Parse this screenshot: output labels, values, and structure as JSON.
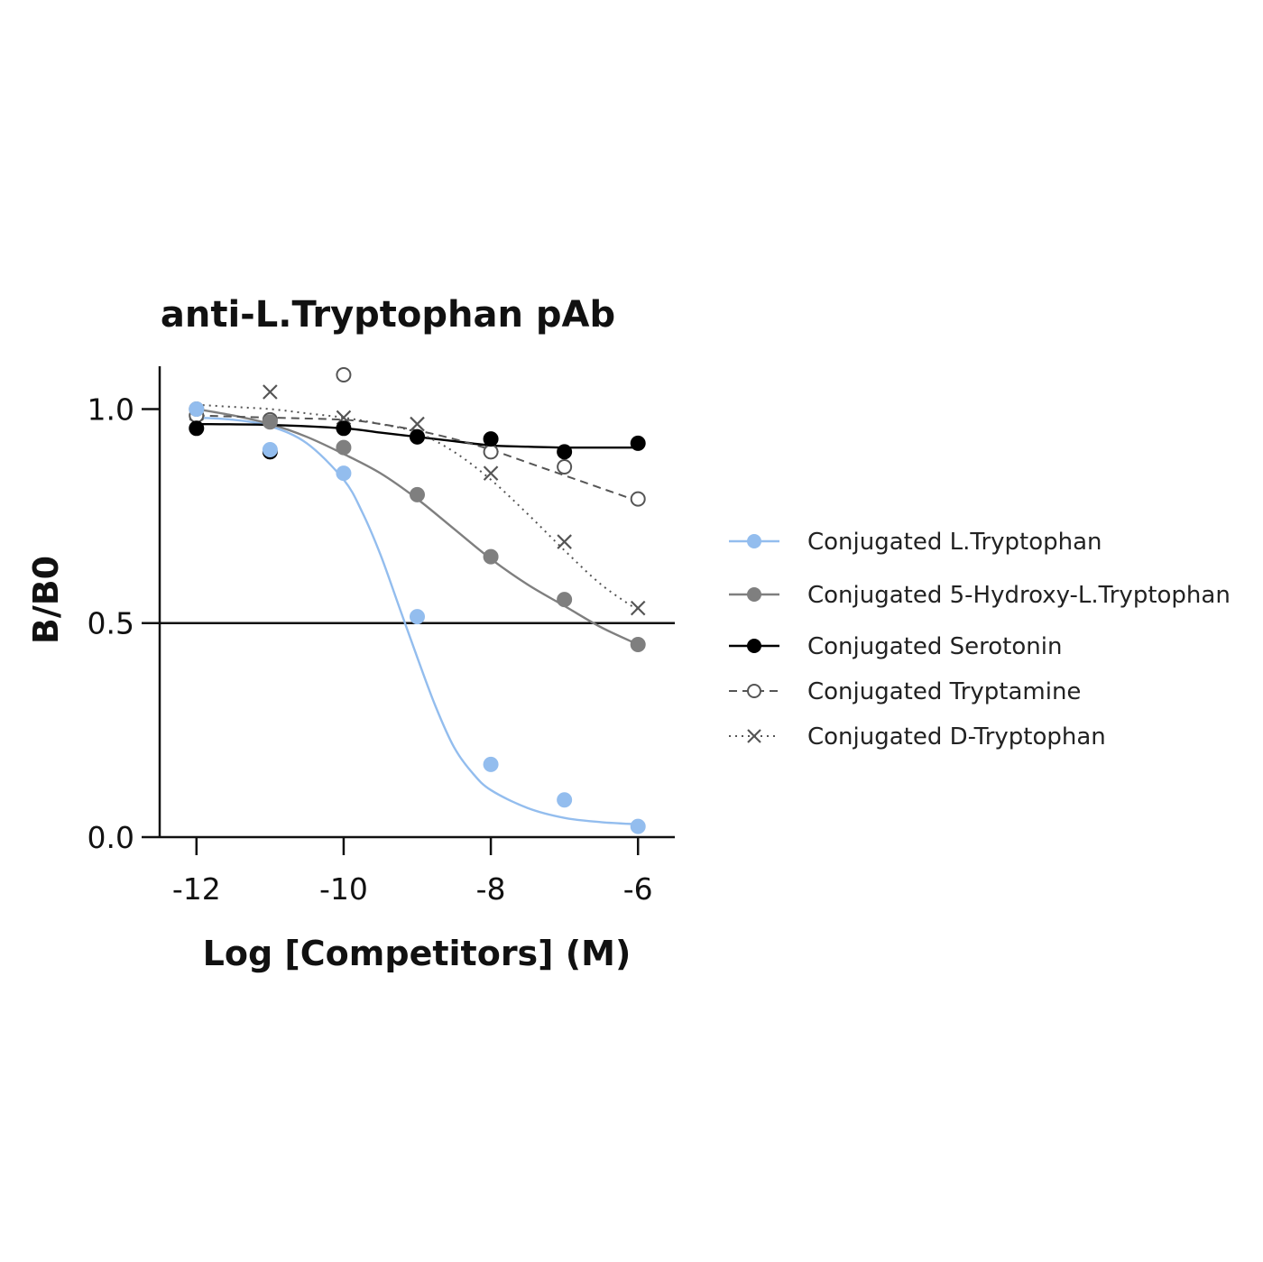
{
  "chart_data": {
    "type": "line",
    "title": "anti-L.Tryptophan pAb",
    "xlabel": "Log [Competitors] (M)",
    "ylabel": "B/B0",
    "xlim": [
      -12.5,
      -5.5
    ],
    "ylim": [
      0,
      1.1
    ],
    "xticks": [
      -12,
      -10,
      -8,
      -6
    ],
    "xtick_labels": [
      "-12",
      "-10",
      "-8",
      "-6"
    ],
    "yticks": [
      0,
      0.5,
      1.0
    ],
    "ytick_labels": [
      "0.0",
      "0.5",
      "1.0"
    ],
    "reference_line_y": 0.5,
    "grid": false,
    "legend_position": "right",
    "series": [
      {
        "name": "Conjugated L.Tryptophan",
        "color": "#93bdee",
        "marker": "filled-circle",
        "line_style": "solid",
        "x": [
          -12,
          -11,
          -10,
          -9,
          -8,
          -7,
          -6
        ],
        "y": [
          1.0,
          0.905,
          0.85,
          0.515,
          0.17,
          0.087,
          0.025
        ],
        "fit": [
          [
            -12,
            0.98
          ],
          [
            -11.5,
            0.975
          ],
          [
            -11,
            0.96
          ],
          [
            -10.5,
            0.92
          ],
          [
            -10,
            0.835
          ],
          [
            -9.75,
            0.76
          ],
          [
            -9.5,
            0.66
          ],
          [
            -9.25,
            0.54
          ],
          [
            -9,
            0.42
          ],
          [
            -8.75,
            0.305
          ],
          [
            -8.5,
            0.21
          ],
          [
            -8.25,
            0.15
          ],
          [
            -8,
            0.11
          ],
          [
            -7.5,
            0.068
          ],
          [
            -7,
            0.045
          ],
          [
            -6.5,
            0.035
          ],
          [
            -6,
            0.03
          ]
        ]
      },
      {
        "name": "Conjugated 5-Hydroxy-L.Tryptophan",
        "color": "#7f7f7f",
        "marker": "filled-circle",
        "line_style": "solid",
        "x": [
          -12,
          -11,
          -10,
          -9,
          -8,
          -7,
          -6
        ],
        "y": [
          1.0,
          0.97,
          0.91,
          0.8,
          0.655,
          0.555,
          0.45
        ],
        "fit": [
          [
            -12,
            1.0
          ],
          [
            -11.5,
            0.985
          ],
          [
            -11,
            0.965
          ],
          [
            -10.5,
            0.935
          ],
          [
            -10,
            0.895
          ],
          [
            -9.5,
            0.85
          ],
          [
            -9,
            0.79
          ],
          [
            -8.5,
            0.72
          ],
          [
            -8,
            0.65
          ],
          [
            -7.5,
            0.59
          ],
          [
            -7,
            0.54
          ],
          [
            -6.5,
            0.49
          ],
          [
            -6,
            0.45
          ]
        ]
      },
      {
        "name": "Conjugated Serotonin",
        "color": "#000000",
        "marker": "filled-circle",
        "line_style": "solid",
        "x": [
          -12,
          -11,
          -10,
          -9,
          -8,
          -7,
          -6
        ],
        "y": [
          0.955,
          0.9,
          0.955,
          0.935,
          0.93,
          0.9,
          0.92
        ],
        "fit": [
          [
            -12,
            0.965
          ],
          [
            -11,
            0.963
          ],
          [
            -10,
            0.955
          ],
          [
            -9.5,
            0.945
          ],
          [
            -9,
            0.935
          ],
          [
            -8.5,
            0.925
          ],
          [
            -8,
            0.915
          ],
          [
            -7.5,
            0.912
          ],
          [
            -7,
            0.91
          ],
          [
            -6.5,
            0.91
          ],
          [
            -6,
            0.91
          ]
        ]
      },
      {
        "name": "Conjugated Tryptamine",
        "color": "#555555",
        "marker": "open-circle",
        "line_style": "dashed",
        "x": [
          -12,
          -11,
          -10,
          -9,
          -8,
          -7,
          -6
        ],
        "y": [
          0.985,
          0.975,
          1.08,
          0.935,
          0.9,
          0.865,
          0.79
        ],
        "fit": [
          [
            -12,
            0.985
          ],
          [
            -11,
            0.98
          ],
          [
            -10,
            0.975
          ],
          [
            -9.5,
            0.965
          ],
          [
            -9,
            0.95
          ],
          [
            -8.5,
            0.93
          ],
          [
            -8,
            0.905
          ],
          [
            -7.5,
            0.875
          ],
          [
            -7,
            0.845
          ],
          [
            -6.5,
            0.815
          ],
          [
            -6,
            0.785
          ]
        ]
      },
      {
        "name": "Conjugated D-Tryptophan",
        "color": "#555555",
        "marker": "x",
        "line_style": "dotted",
        "x": [
          -12,
          -11,
          -10,
          -9,
          -8,
          -7,
          -6
        ],
        "y": [
          0.99,
          1.04,
          0.98,
          0.965,
          0.85,
          0.69,
          0.535
        ],
        "fit": [
          [
            -12,
            1.01
          ],
          [
            -11.5,
            1.005
          ],
          [
            -11,
            1.0
          ],
          [
            -10.5,
            0.99
          ],
          [
            -10,
            0.98
          ],
          [
            -9.5,
            0.965
          ],
          [
            -9,
            0.945
          ],
          [
            -8.5,
            0.9
          ],
          [
            -8,
            0.835
          ],
          [
            -7.5,
            0.755
          ],
          [
            -7,
            0.67
          ],
          [
            -6.5,
            0.59
          ],
          [
            -6,
            0.53
          ]
        ]
      }
    ]
  }
}
